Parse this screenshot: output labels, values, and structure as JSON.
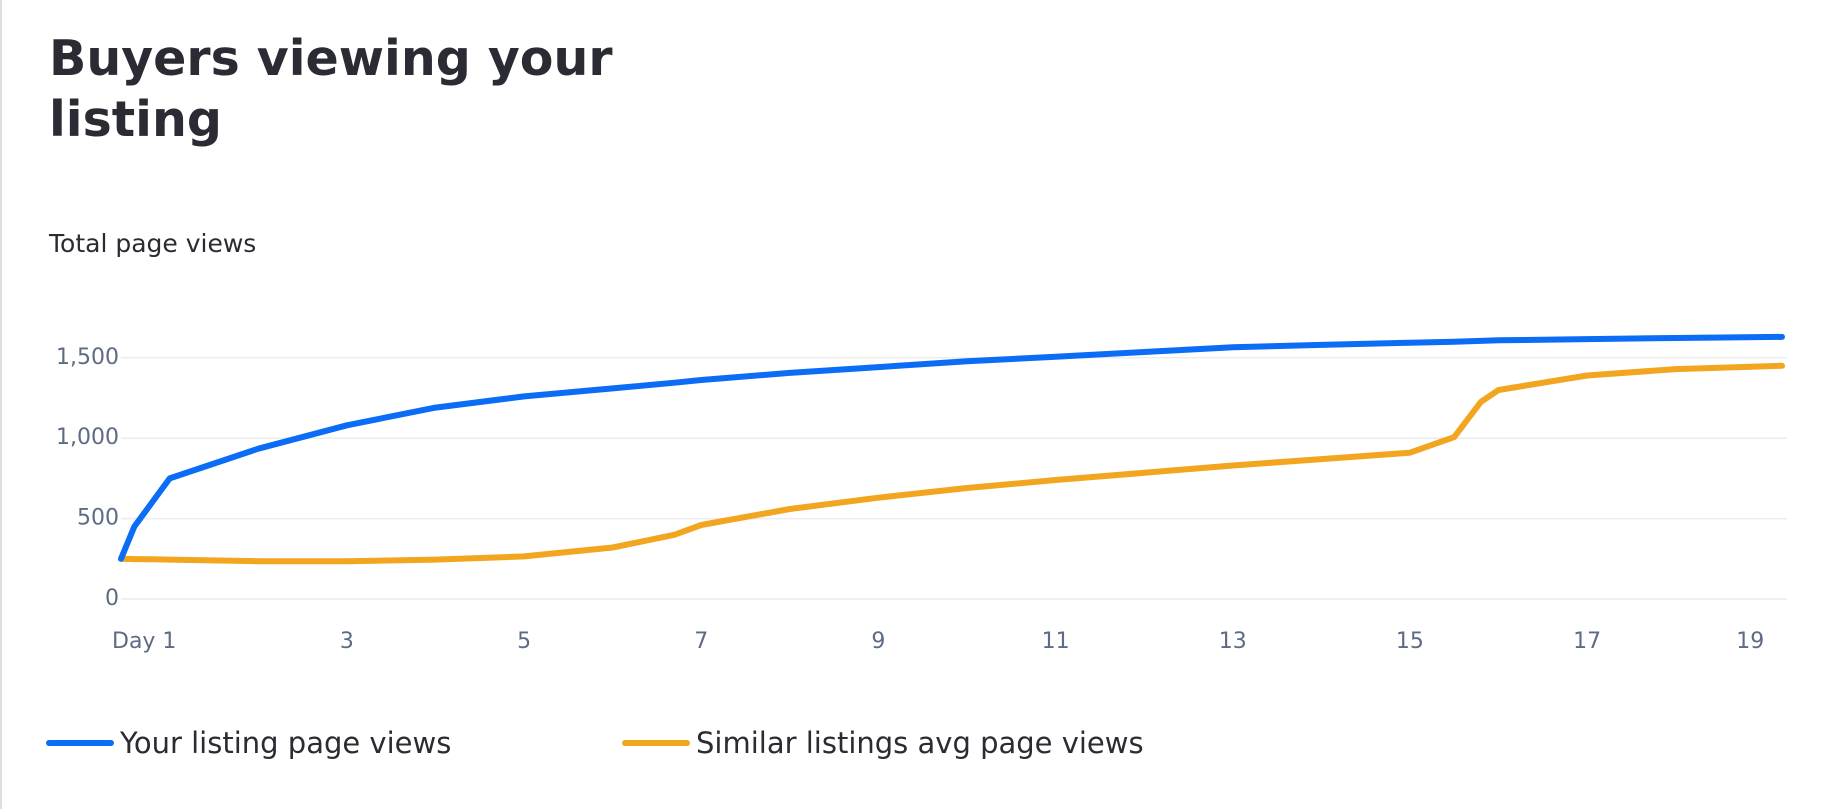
{
  "chart_data": {
    "type": "line",
    "title": "Buyers viewing your listing",
    "ylabel": "Total page views",
    "x": [
      0.45,
      0.6,
      0.8,
      1,
      2,
      3,
      4,
      5,
      6,
      6.7,
      7,
      8,
      9,
      10,
      11,
      12,
      13,
      14,
      15,
      15.5,
      15.8,
      16,
      17,
      18,
      19.2
    ],
    "series": [
      {
        "name": "Your listing page views",
        "color": "#0b6cf5",
        "values": [
          250,
          450,
          600,
          750,
          935,
          1080,
          1190,
          1260,
          1310,
          1345,
          1362,
          1406,
          1442,
          1478,
          1507,
          1536,
          1565,
          1580,
          1594,
          1600,
          1605,
          1609,
          1616,
          1623,
          1630
        ]
      },
      {
        "name": "Similar listings avg page views",
        "color": "#f2a51f",
        "values": [
          250,
          248,
          247,
          245,
          235,
          235,
          245,
          265,
          320,
          400,
          460,
          560,
          630,
          690,
          740,
          785,
          830,
          870,
          910,
          1007,
          1225,
          1300,
          1390,
          1430,
          1450
        ]
      }
    ],
    "xlim": [
      0.45,
      19.2
    ],
    "xticks": [
      {
        "value": 1,
        "label": "Day 1"
      },
      3,
      5,
      7,
      9,
      11,
      13,
      15,
      17,
      19
    ],
    "ylim": [
      0,
      1750
    ],
    "yticks": [
      0,
      500,
      {
        "value": 1000,
        "label": "1,000"
      },
      {
        "value": 1500,
        "label": "1,500"
      }
    ],
    "grid": true
  }
}
